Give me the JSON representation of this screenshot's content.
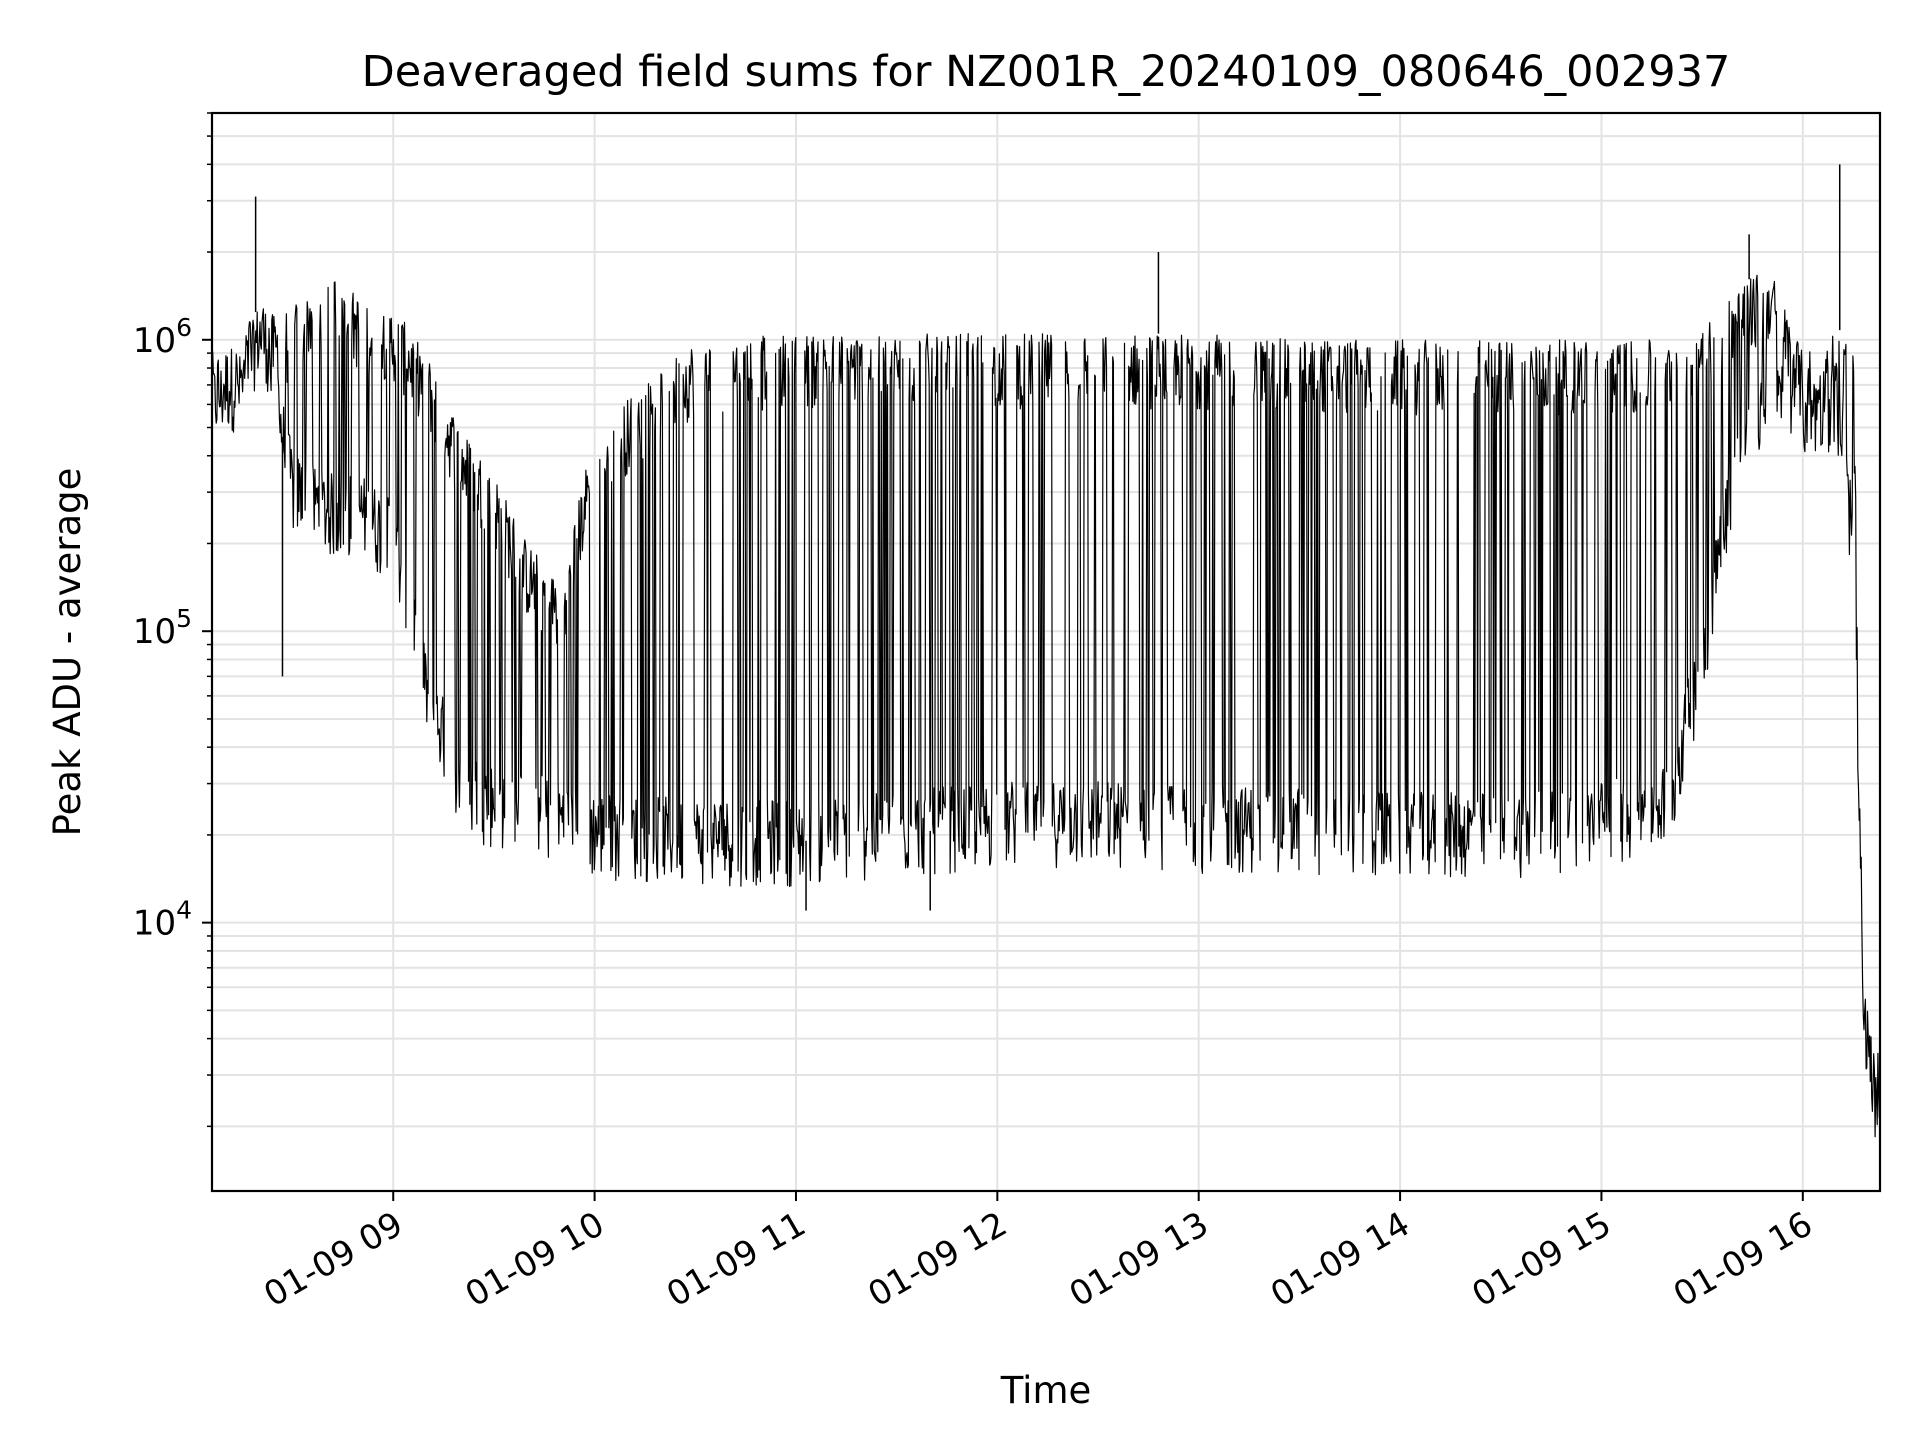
{
  "chart_data": {
    "type": "line",
    "title": "Deaveraged field sums for NZ001R_20240109_080646_002937",
    "xlabel": "Time",
    "ylabel": "Peak ADU - average",
    "yscale": "log",
    "x_range": [
      "01-09 08:06",
      "01-09 16:23"
    ],
    "y_range": [
      1200,
      6000000
    ],
    "x_ticks": [
      "01-09 09",
      "01-09 10",
      "01-09 11",
      "01-09 12",
      "01-09 13",
      "01-09 14",
      "01-09 15",
      "01-09 16"
    ],
    "y_ticks": [
      {
        "base": "10",
        "exp": "4",
        "value": 10000
      },
      {
        "base": "10",
        "exp": "5",
        "value": 100000
      },
      {
        "base": "10",
        "exp": "6",
        "value": 1000000
      }
    ],
    "grid": true,
    "line_color": "#000000",
    "series": [
      {
        "x": [
          "01-09 08:06",
          "01-09 08:15",
          "01-09 08:20",
          "01-09 08:25",
          "01-09 08:30",
          "01-09 08:40",
          "01-09 08:50",
          "01-09 09:00",
          "01-09 09:10",
          "01-09 09:20",
          "01-09 09:30",
          "01-09 09:40",
          "01-09 09:50",
          "01-09 10:00",
          "01-09 10:30",
          "01-09 11:00",
          "01-09 11:30",
          "01-09 12:00",
          "01-09 12:30",
          "01-09 13:00",
          "01-09 13:30",
          "01-09 14:00",
          "01-09 14:30",
          "01-09 15:00",
          "01-09 15:20",
          "01-09 15:30",
          "01-09 15:40",
          "01-09 15:50",
          "01-09 16:00",
          "01-09 16:10",
          "01-09 16:15",
          "01-09 16:18",
          "01-09 16:20",
          "01-09 16:23"
        ],
        "low": [
          650000,
          700000,
          1200000,
          600000,
          300000,
          250000,
          250000,
          200000,
          60000,
          30000,
          25000,
          24000,
          22000,
          20000,
          19000,
          19000,
          20000,
          22000,
          22000,
          21000,
          21000,
          20000,
          20000,
          22000,
          25000,
          80000,
          400000,
          600000,
          550000,
          600000,
          200000,
          4000,
          3000,
          2000
        ],
        "high": [
          800000,
          900000,
          1350000,
          1200000,
          1300000,
          1800000,
          1400000,
          1300000,
          900000,
          500000,
          350000,
          200000,
          150000,
          500000,
          1000000,
          1050000,
          1050000,
          1050000,
          1050000,
          1050000,
          1000000,
          1000000,
          1000000,
          1000000,
          1000000,
          1200000,
          1500000,
          1800000,
          900000,
          1100000,
          1000000,
          7000,
          4200,
          3500
        ]
      }
    ],
    "spikes": [
      {
        "x": "01-09 08:19",
        "y": 3100000
      },
      {
        "x": "01-09 12:48",
        "y": 2000000
      },
      {
        "x": "01-09 15:44",
        "y": 2300000
      },
      {
        "x": "01-09 16:11",
        "y": 4000000
      },
      {
        "x": "01-09 08:27",
        "y": 70000
      },
      {
        "x": "01-09 11:40",
        "y": 11000
      },
      {
        "x": "01-09 11:03",
        "y": 11000
      }
    ]
  }
}
